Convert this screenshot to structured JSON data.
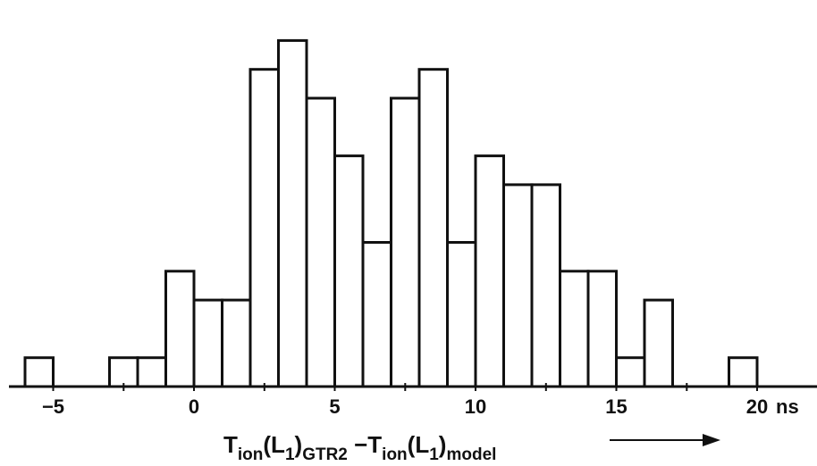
{
  "chart_data": {
    "type": "bar",
    "style": "histogram",
    "bin_width": 1,
    "bins": [
      {
        "start": -6,
        "value": 1
      },
      {
        "start": -3,
        "value": 1
      },
      {
        "start": -2,
        "value": 1
      },
      {
        "start": -1,
        "value": 4
      },
      {
        "start": 0,
        "value": 3
      },
      {
        "start": 1,
        "value": 3
      },
      {
        "start": 2,
        "value": 11
      },
      {
        "start": 3,
        "value": 12
      },
      {
        "start": 4,
        "value": 10
      },
      {
        "start": 5,
        "value": 8
      },
      {
        "start": 6,
        "value": 5
      },
      {
        "start": 7,
        "value": 10
      },
      {
        "start": 8,
        "value": 11
      },
      {
        "start": 9,
        "value": 5
      },
      {
        "start": 10,
        "value": 8
      },
      {
        "start": 11,
        "value": 7
      },
      {
        "start": 12,
        "value": 7
      },
      {
        "start": 13,
        "value": 4
      },
      {
        "start": 14,
        "value": 4
      },
      {
        "start": 15,
        "value": 1
      },
      {
        "start": 16,
        "value": 3
      },
      {
        "start": 19,
        "value": 1
      }
    ],
    "x_ticks": [
      -5,
      0,
      5,
      10,
      15,
      20
    ],
    "x_tick_labels": [
      "−5",
      "0",
      "5",
      "10",
      "15",
      "20"
    ],
    "x_unit": "ns",
    "xlim": [
      -6.5,
      22.5
    ],
    "ylim": [
      0,
      12
    ],
    "xlabel": {
      "t1": "T",
      "s1": "ion",
      "p1": "(L",
      "s2": "1",
      "p2": ")",
      "s3": "GTR2",
      "mid": " −T",
      "s4": "ion",
      "p3": "(L",
      "s5": "1",
      "p4": ")",
      "s6": "model",
      "arrow": "→"
    },
    "ylabel": "",
    "title": "",
    "grid": false,
    "legend": "none"
  }
}
